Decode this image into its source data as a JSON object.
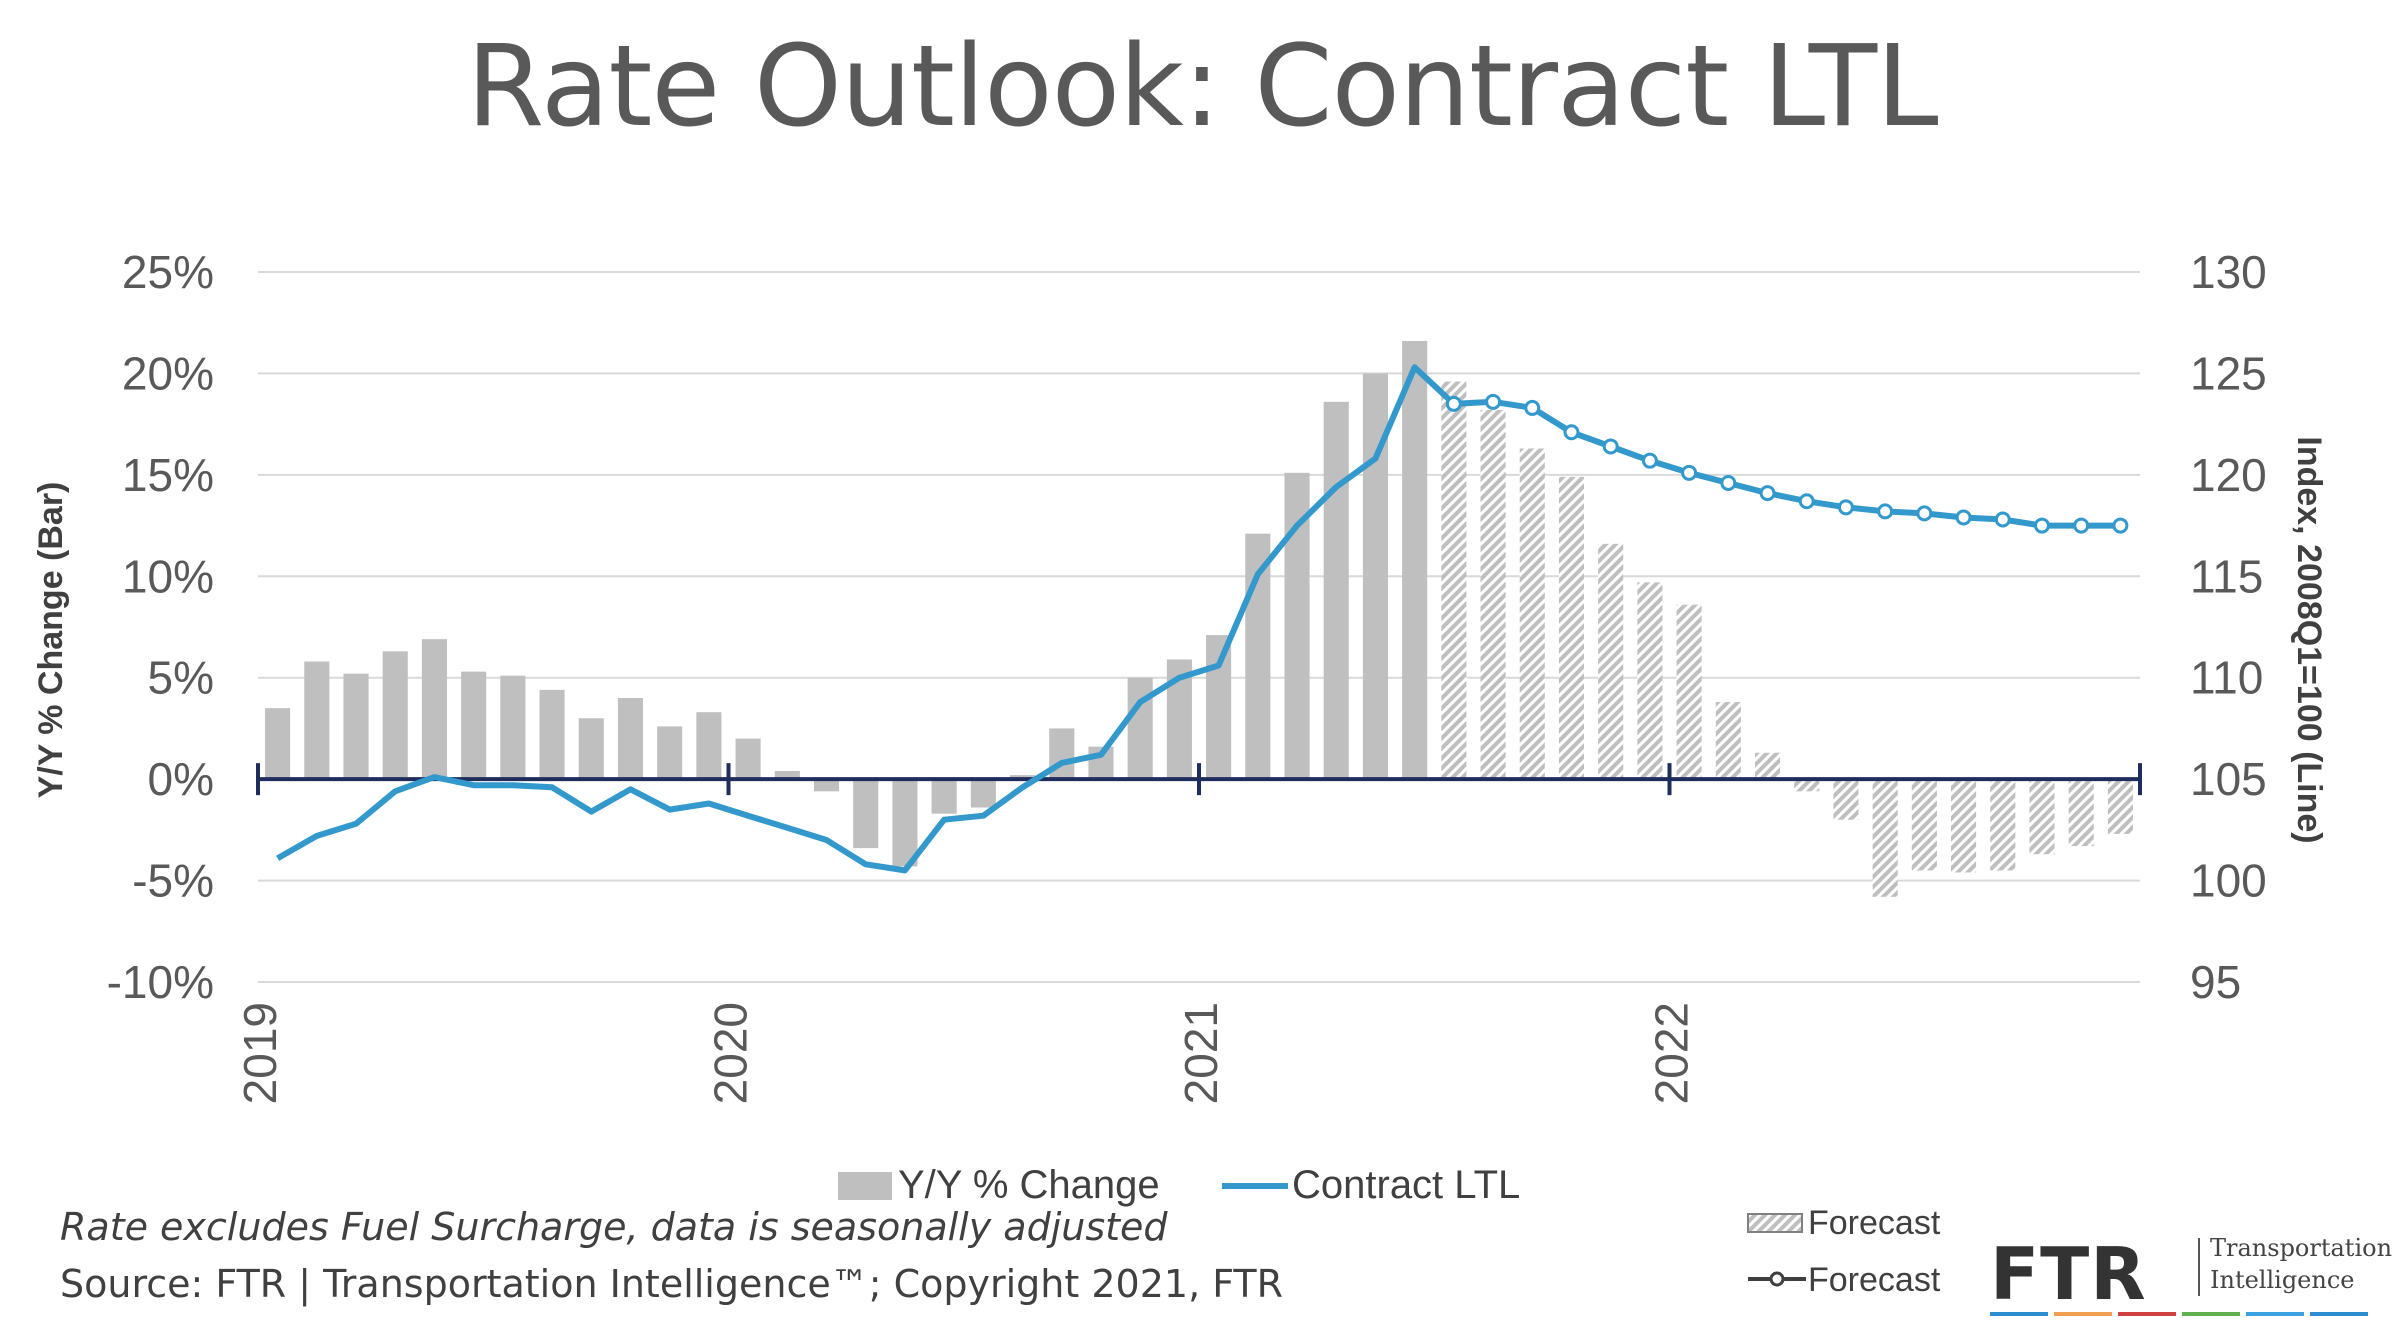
{
  "title": "Rate Outlook: Contract LTL",
  "note": "Rate excludes Fuel Surcharge, data is seasonally adjusted",
  "source": "Source: FTR | Transportation Intelligence™; Copyright 2021, FTR",
  "logo": {
    "name": "FTR",
    "line1": "Transportation",
    "line2": "Intelligence",
    "stripe_colors": [
      "#2e8fd0",
      "#f0a050",
      "#d04040",
      "#60b050",
      "#3aa0e0",
      "#2e8fd0"
    ]
  },
  "colors": {
    "bar": "#bfbfbf",
    "line": "#3399cc",
    "axis": "#1f2d5a",
    "grid": "#d9d9d9",
    "text": "#595959"
  },
  "chart_data": {
    "type": "bar+line",
    "title": "Rate Outlook: Contract LTL",
    "ylabel_left": "Y/Y % Change (Bar)",
    "ylabel_right": "Index, 2008Q1=100 (Line)",
    "ylim_left": [
      -10,
      25
    ],
    "ylim_right": [
      95,
      130
    ],
    "yticks_left": [
      "25%",
      "20%",
      "15%",
      "10%",
      "5%",
      "0%",
      "-5%",
      "-10%"
    ],
    "yticks_right": [
      "130",
      "125",
      "120",
      "115",
      "110",
      "105",
      "100",
      "95"
    ],
    "x_year_labels": [
      "2019",
      "2020",
      "2021",
      "2022"
    ],
    "x_year_start_index": [
      0,
      12,
      24,
      36
    ],
    "months": 48,
    "forecast_start_index": 30,
    "bar_series": {
      "name": "Y/Y % Change",
      "values": [
        3.5,
        5.8,
        5.2,
        6.3,
        6.9,
        5.3,
        5.1,
        4.4,
        3.0,
        4.0,
        2.6,
        3.3,
        2.0,
        0.4,
        -0.6,
        -3.4,
        -4.3,
        -1.7,
        -1.4,
        0.2,
        2.5,
        1.6,
        5.0,
        5.9,
        7.1,
        12.1,
        15.1,
        18.6,
        20.0,
        21.6,
        19.6,
        18.2,
        16.3,
        14.9,
        11.6,
        9.7,
        8.6,
        3.8,
        1.3,
        -0.6,
        -2.0,
        -5.8,
        -4.5,
        -4.6,
        -4.5,
        -3.7,
        -3.3,
        -2.7
      ]
    },
    "line_series": {
      "name": "Contract LTL",
      "values": [
        101.1,
        102.2,
        102.8,
        104.4,
        105.1,
        104.7,
        104.7,
        104.6,
        103.4,
        104.5,
        103.5,
        103.8,
        103.2,
        102.6,
        102.0,
        100.8,
        100.5,
        103.0,
        103.2,
        104.6,
        105.8,
        106.2,
        108.8,
        110.0,
        110.6,
        115.1,
        117.5,
        119.4,
        120.8,
        125.3,
        123.5,
        123.6,
        123.3,
        122.1,
        121.4,
        120.7,
        120.1,
        119.6,
        119.1,
        118.7,
        118.4,
        118.2,
        118.1,
        117.9,
        117.8,
        117.5,
        117.5,
        117.5
      ]
    },
    "legend": {
      "placement": "bottom",
      "bar_label": "Y/Y % Change",
      "line_label": "Contract LTL",
      "forecast_bar_label": "Forecast",
      "forecast_line_label": "Forecast"
    }
  }
}
